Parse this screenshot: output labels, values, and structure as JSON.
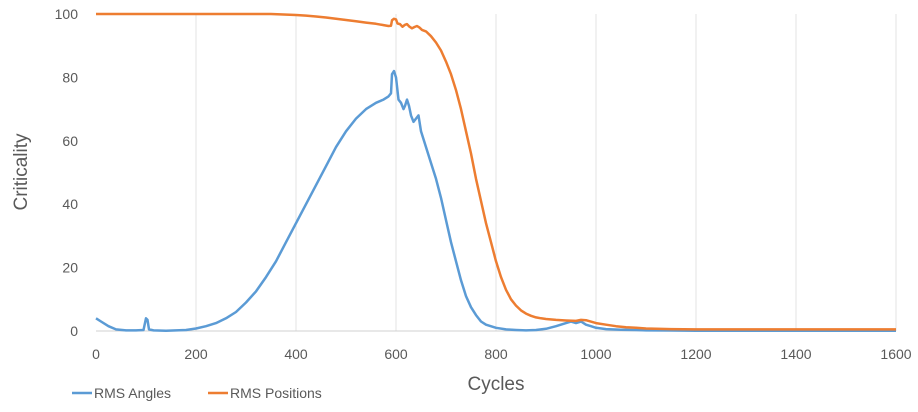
{
  "chart_data": {
    "type": "line",
    "title": "",
    "xlabel": "Cycles",
    "ylabel": "Criticality",
    "xlim": [
      0,
      1600
    ],
    "ylim": [
      0,
      100
    ],
    "x_ticks": [
      "0",
      "200",
      "400",
      "600",
      "800",
      "1000",
      "1200",
      "1400",
      "1600"
    ],
    "y_ticks": [
      "0",
      "20",
      "40",
      "60",
      "80",
      "100"
    ],
    "grid": "vertical",
    "legend_position": "bottom-left",
    "series": [
      {
        "name": "RMS Angles",
        "color": "#5B9BD5",
        "points": [
          [
            0,
            4
          ],
          [
            10,
            3
          ],
          [
            25,
            1.5
          ],
          [
            40,
            0.5
          ],
          [
            60,
            0.2
          ],
          [
            80,
            0.2
          ],
          [
            95,
            0.3
          ],
          [
            100,
            4
          ],
          [
            103,
            3.5
          ],
          [
            106,
            0.5
          ],
          [
            115,
            0.2
          ],
          [
            140,
            0.1
          ],
          [
            160,
            0.2
          ],
          [
            180,
            0.3
          ],
          [
            200,
            0.8
          ],
          [
            220,
            1.5
          ],
          [
            240,
            2.5
          ],
          [
            260,
            4
          ],
          [
            280,
            6
          ],
          [
            300,
            9
          ],
          [
            320,
            12.5
          ],
          [
            340,
            17
          ],
          [
            360,
            22
          ],
          [
            380,
            28
          ],
          [
            400,
            34
          ],
          [
            420,
            40
          ],
          [
            440,
            46
          ],
          [
            460,
            52
          ],
          [
            480,
            58
          ],
          [
            500,
            63
          ],
          [
            520,
            67
          ],
          [
            540,
            70
          ],
          [
            560,
            72
          ],
          [
            575,
            73
          ],
          [
            585,
            74
          ],
          [
            590,
            75
          ],
          [
            592,
            81
          ],
          [
            596,
            82
          ],
          [
            600,
            80
          ],
          [
            605,
            73
          ],
          [
            610,
            72
          ],
          [
            615,
            70
          ],
          [
            618,
            71
          ],
          [
            622,
            73
          ],
          [
            626,
            71
          ],
          [
            630,
            68
          ],
          [
            635,
            66
          ],
          [
            640,
            67
          ],
          [
            645,
            68
          ],
          [
            650,
            63
          ],
          [
            660,
            58
          ],
          [
            670,
            53
          ],
          [
            680,
            48
          ],
          [
            690,
            42
          ],
          [
            700,
            35
          ],
          [
            710,
            28
          ],
          [
            720,
            22
          ],
          [
            730,
            16
          ],
          [
            740,
            11
          ],
          [
            750,
            7.5
          ],
          [
            760,
            5
          ],
          [
            770,
            3
          ],
          [
            780,
            2
          ],
          [
            800,
            1
          ],
          [
            820,
            0.5
          ],
          [
            840,
            0.3
          ],
          [
            860,
            0.2
          ],
          [
            880,
            0.3
          ],
          [
            900,
            0.7
          ],
          [
            920,
            1.5
          ],
          [
            940,
            2.5
          ],
          [
            950,
            3
          ],
          [
            960,
            2.5
          ],
          [
            970,
            3
          ],
          [
            980,
            2
          ],
          [
            990,
            1.5
          ],
          [
            1000,
            1
          ],
          [
            1020,
            0.6
          ],
          [
            1050,
            0.4
          ],
          [
            1080,
            0.3
          ],
          [
            1100,
            0.2
          ],
          [
            1150,
            0.15
          ],
          [
            1200,
            0.1
          ],
          [
            1300,
            0.1
          ],
          [
            1400,
            0.1
          ],
          [
            1500,
            0.1
          ],
          [
            1600,
            0.1
          ]
        ]
      },
      {
        "name": "RMS Positions",
        "color": "#ED7D31",
        "points": [
          [
            0,
            100
          ],
          [
            50,
            100
          ],
          [
            100,
            100
          ],
          [
            200,
            100
          ],
          [
            300,
            100
          ],
          [
            350,
            100
          ],
          [
            400,
            99.7
          ],
          [
            420,
            99.5
          ],
          [
            440,
            99.2
          ],
          [
            460,
            98.9
          ],
          [
            480,
            98.5
          ],
          [
            500,
            98.1
          ],
          [
            520,
            97.7
          ],
          [
            540,
            97.3
          ],
          [
            560,
            96.9
          ],
          [
            575,
            96.5
          ],
          [
            585,
            96.2
          ],
          [
            590,
            96.3
          ],
          [
            592,
            98
          ],
          [
            596,
            98.5
          ],
          [
            600,
            98.3
          ],
          [
            603,
            97
          ],
          [
            608,
            96.8
          ],
          [
            613,
            96
          ],
          [
            618,
            96.6
          ],
          [
            622,
            96.8
          ],
          [
            627,
            96
          ],
          [
            632,
            95.5
          ],
          [
            637,
            95.9
          ],
          [
            642,
            96.2
          ],
          [
            647,
            95.7
          ],
          [
            652,
            95
          ],
          [
            660,
            94.5
          ],
          [
            670,
            93
          ],
          [
            680,
            91
          ],
          [
            690,
            88.5
          ],
          [
            700,
            85
          ],
          [
            710,
            81
          ],
          [
            720,
            76
          ],
          [
            730,
            70
          ],
          [
            740,
            63
          ],
          [
            750,
            56
          ],
          [
            760,
            48
          ],
          [
            770,
            41
          ],
          [
            780,
            34
          ],
          [
            790,
            28
          ],
          [
            800,
            22
          ],
          [
            810,
            17
          ],
          [
            820,
            13
          ],
          [
            830,
            10
          ],
          [
            840,
            8
          ],
          [
            850,
            6.5
          ],
          [
            860,
            5.5
          ],
          [
            870,
            4.8
          ],
          [
            880,
            4.3
          ],
          [
            890,
            4
          ],
          [
            900,
            3.8
          ],
          [
            920,
            3.5
          ],
          [
            940,
            3.3
          ],
          [
            960,
            3.2
          ],
          [
            970,
            3.5
          ],
          [
            980,
            3.4
          ],
          [
            1000,
            2.5
          ],
          [
            1020,
            2
          ],
          [
            1040,
            1.5
          ],
          [
            1060,
            1.2
          ],
          [
            1080,
            1
          ],
          [
            1100,
            0.8
          ],
          [
            1120,
            0.7
          ],
          [
            1150,
            0.6
          ],
          [
            1200,
            0.5
          ],
          [
            1300,
            0.5
          ],
          [
            1400,
            0.5
          ],
          [
            1500,
            0.5
          ],
          [
            1600,
            0.5
          ]
        ]
      }
    ]
  }
}
